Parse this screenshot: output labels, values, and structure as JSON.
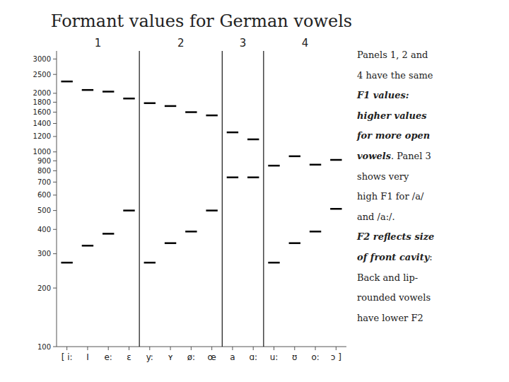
{
  "chart_data": {
    "type": "scatter",
    "marker": "dash",
    "title": "Formant values for German vowels",
    "log": "y",
    "grid": false,
    "ylim": [
      100,
      3300
    ],
    "yticks": [
      100,
      200,
      300,
      400,
      500,
      600,
      700,
      800,
      900,
      1000,
      1200,
      1400,
      1600,
      1800,
      2000,
      2500,
      3000
    ],
    "categories": [
      "[ i:",
      "I",
      "e:",
      "ɛ",
      "y:",
      "ʏ",
      "ø:",
      "œ",
      "a",
      "ɑ:",
      "u:",
      "ʊ",
      "o:",
      "ɔ ]"
    ],
    "series": [
      {
        "color": "#000000",
        "values": [
          2300,
          2080,
          2040,
          1880,
          1780,
          1720,
          1600,
          1540,
          1260,
          1160,
          850,
          950,
          860,
          910
        ]
      },
      {
        "color": "#000000",
        "values": [
          270,
          330,
          380,
          500,
          270,
          340,
          390,
          500,
          740,
          740,
          270,
          340,
          390,
          510
        ]
      }
    ],
    "panels": [
      {
        "label": "1",
        "start": 0,
        "end": 3
      },
      {
        "label": "2",
        "start": 4,
        "end": 7
      },
      {
        "label": "3",
        "start": 8,
        "end": 9
      },
      {
        "label": "4",
        "start": 10,
        "end": 13
      }
    ],
    "annotation": [
      [
        {
          "text": "Panels 1, 2 and",
          "emphasis": false
        }
      ],
      [
        {
          "text": "4 have the same",
          "emphasis": false
        }
      ],
      [
        {
          "text": "F1 values:",
          "emphasis": true
        }
      ],
      [
        {
          "text": "higher values",
          "emphasis": true
        }
      ],
      [
        {
          "text": "for more open",
          "emphasis": true
        }
      ],
      [
        {
          "text": "vowels",
          "emphasis": true
        },
        {
          "text": ". Panel 3",
          "emphasis": false
        }
      ],
      [
        {
          "text": "shows very",
          "emphasis": false
        }
      ],
      [
        {
          "text": "high F1 for /a/",
          "emphasis": false
        }
      ],
      [
        {
          "text": "and /a:/.",
          "emphasis": false
        }
      ],
      [
        {
          "text": "F2 reflects size",
          "emphasis": true
        }
      ],
      [
        {
          "text": "of front cavity",
          "emphasis": true
        },
        {
          "text": ":",
          "emphasis": false
        }
      ],
      [
        {
          "text": "Back and lip-",
          "emphasis": false
        }
      ],
      [
        {
          "text": "rounded vowels",
          "emphasis": false
        }
      ],
      [
        {
          "text": "have lower F2",
          "emphasis": false
        }
      ]
    ]
  }
}
